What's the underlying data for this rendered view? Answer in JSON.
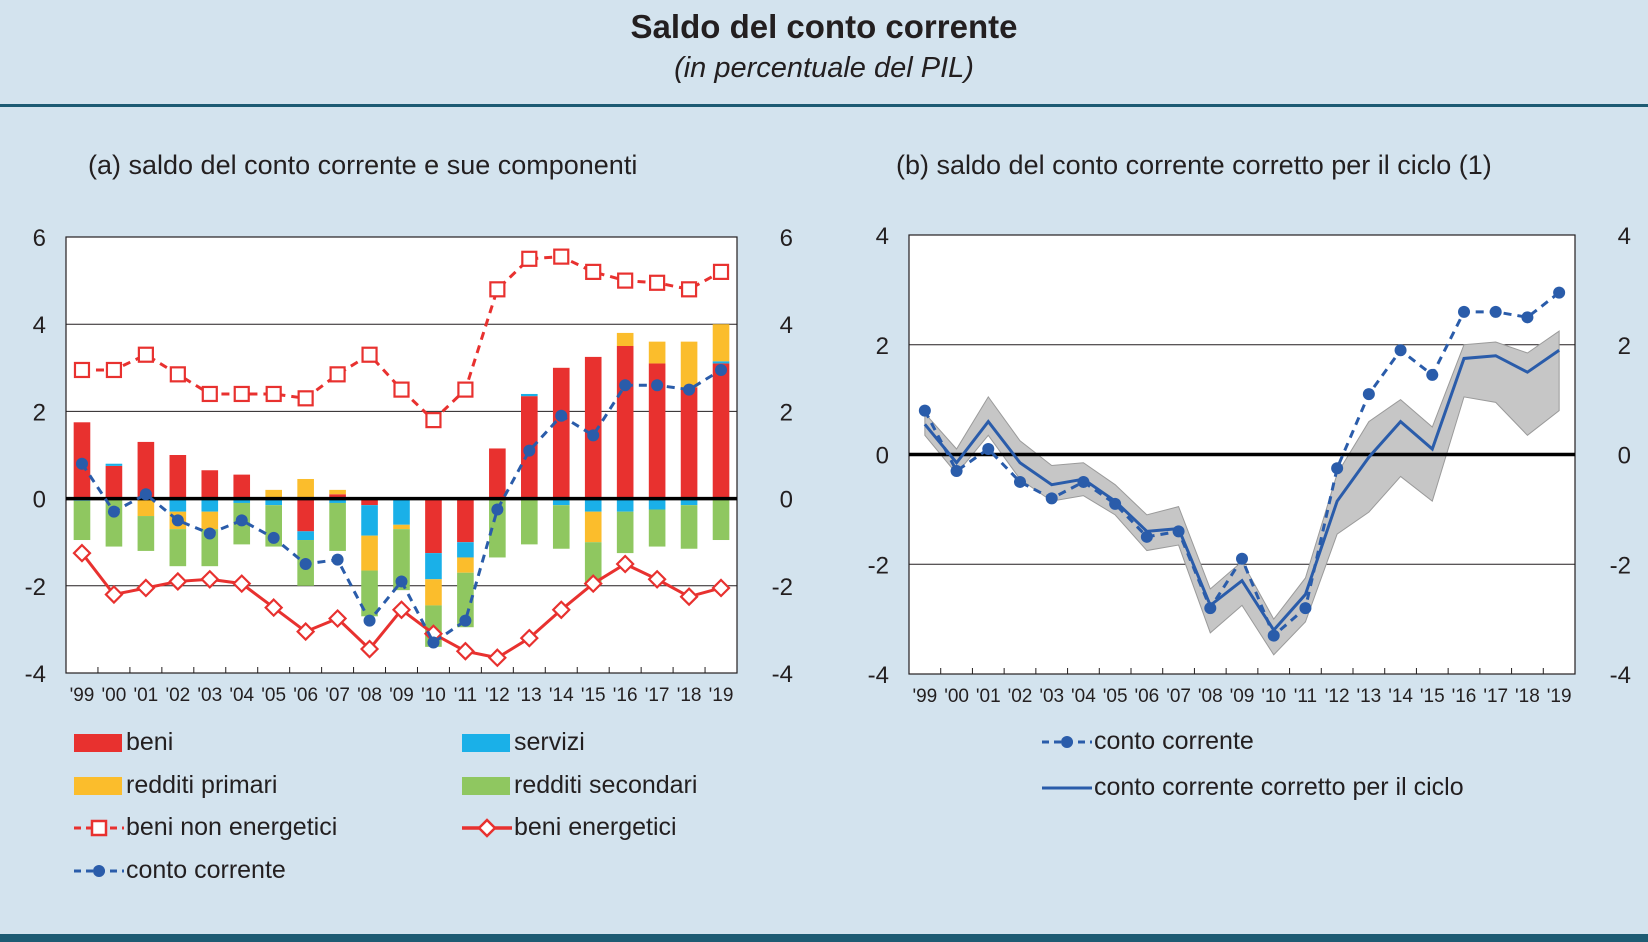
{
  "figure": {
    "title": "Saldo del conto corrente",
    "subtitle": "(in percentuale del PIL)"
  },
  "chart_data": [
    {
      "type": "bar",
      "title": "(a) saldo del conto corrente e sue componenti",
      "categories": [
        "'99",
        "'00",
        "'01",
        "'02",
        "'03",
        "'04",
        "'05",
        "'06",
        "'07",
        "'08",
        "'09",
        "'10",
        "'11",
        "'12",
        "'13",
        "'14",
        "'15",
        "'16",
        "'17",
        "'18",
        "'19"
      ],
      "ylim": [
        -4,
        6
      ],
      "yticks": [
        "6",
        "4",
        "2",
        "0",
        "-2",
        "-4"
      ],
      "grid": true,
      "stacked": true,
      "series": [
        {
          "name": "beni",
          "kind": "bar",
          "color": "#e8312f",
          "values": [
            1.75,
            0.75,
            1.3,
            1.0,
            0.65,
            0.55,
            0.0,
            -0.75,
            0.1,
            -0.15,
            0.0,
            -1.25,
            -1.0,
            1.15,
            2.35,
            3.0,
            3.25,
            3.5,
            3.1,
            2.55,
            3.1
          ]
        },
        {
          "name": "servizi",
          "kind": "bar",
          "color": "#1ab0e8",
          "values": [
            -0.05,
            0.05,
            0.0,
            -0.3,
            -0.3,
            -0.1,
            -0.15,
            -0.2,
            -0.1,
            -0.7,
            -0.6,
            -0.6,
            -0.35,
            0.0,
            0.05,
            -0.15,
            -0.3,
            -0.3,
            -0.25,
            -0.15,
            0.05
          ]
        },
        {
          "name": "redditi primari",
          "kind": "bar",
          "color": "#fbbd2c",
          "values": [
            0.0,
            0.0,
            -0.4,
            -0.4,
            -0.4,
            0.0,
            0.2,
            0.45,
            0.1,
            -0.8,
            -0.1,
            -0.6,
            -0.35,
            0.0,
            0.0,
            0.0,
            -0.7,
            0.3,
            0.5,
            1.05,
            0.85
          ]
        },
        {
          "name": "redditi secondari",
          "kind": "bar",
          "color": "#8fc760",
          "values": [
            -0.9,
            -1.1,
            -0.8,
            -0.85,
            -0.85,
            -0.95,
            -0.95,
            -1.05,
            -1.1,
            -1.05,
            -1.4,
            -0.95,
            -1.25,
            -1.35,
            -1.05,
            -1.0,
            -0.95,
            -0.95,
            -0.85,
            -1.0,
            -0.95
          ]
        },
        {
          "name": "beni non energetici",
          "kind": "line",
          "color": "#e8312f",
          "values": [
            2.95,
            2.95,
            3.3,
            2.85,
            2.4,
            2.4,
            2.4,
            2.3,
            2.85,
            3.3,
            2.5,
            1.8,
            2.5,
            4.8,
            5.5,
            5.55,
            5.2,
            5.0,
            4.95,
            4.8,
            5.2
          ]
        },
        {
          "name": "beni energetici",
          "kind": "line",
          "color": "#e8312f",
          "values": [
            -1.25,
            -2.2,
            -2.05,
            -1.9,
            -1.85,
            -1.95,
            -2.5,
            -3.05,
            -2.75,
            -3.45,
            -2.55,
            -3.1,
            -3.5,
            -3.65,
            -3.2,
            -2.55,
            -1.95,
            -1.5,
            -1.85,
            -2.25,
            -2.05
          ]
        },
        {
          "name": "conto corrente",
          "kind": "line",
          "color": "#2a5caa",
          "values": [
            0.8,
            -0.3,
            0.1,
            -0.5,
            -0.8,
            -0.5,
            -0.9,
            -1.5,
            -1.4,
            -2.8,
            -1.9,
            -3.3,
            -2.8,
            -0.25,
            1.1,
            1.9,
            1.45,
            2.6,
            2.6,
            2.5,
            2.95
          ]
        }
      ]
    },
    {
      "type": "line",
      "title": "(b) saldo del conto corrente corretto per il ciclo (1)",
      "categories": [
        "'99",
        "'00",
        "'01",
        "'02",
        "'03",
        "'04",
        "'05",
        "'06",
        "'07",
        "'08",
        "'09",
        "'10",
        "'11",
        "'12",
        "'13",
        "'14",
        "'15",
        "'16",
        "'17",
        "'18",
        "'19"
      ],
      "ylim": [
        -4,
        4
      ],
      "yticks": [
        "4",
        "2",
        "0",
        "-2",
        "-4"
      ],
      "grid": true,
      "series": [
        {
          "name": "conto corrente",
          "color": "#2a5caa",
          "style": "dashed-marker",
          "values": [
            0.8,
            -0.3,
            0.1,
            -0.5,
            -0.8,
            -0.5,
            -0.9,
            -1.5,
            -1.4,
            -2.8,
            -1.9,
            -3.3,
            -2.8,
            -0.25,
            1.1,
            1.9,
            1.45,
            2.6,
            2.6,
            2.5,
            2.95
          ]
        },
        {
          "name": "conto corrente corretto per il ciclo",
          "color": "#2a5caa",
          "style": "solid",
          "values": [
            0.55,
            -0.15,
            0.6,
            -0.15,
            -0.55,
            -0.45,
            -0.85,
            -1.4,
            -1.35,
            -2.75,
            -2.3,
            -3.2,
            -2.55,
            -0.85,
            -0.05,
            0.6,
            0.1,
            1.75,
            1.8,
            1.5,
            1.9
          ],
          "band_upper": [
            0.75,
            0.1,
            1.05,
            0.25,
            -0.2,
            -0.15,
            -0.55,
            -1.1,
            -0.95,
            -2.45,
            -1.95,
            -3.0,
            -2.25,
            -0.35,
            0.6,
            1.0,
            0.5,
            2.0,
            2.05,
            1.85,
            2.25
          ],
          "band_lower": [
            0.35,
            -0.35,
            0.35,
            -0.45,
            -0.85,
            -0.75,
            -1.1,
            -1.75,
            -1.65,
            -3.25,
            -2.75,
            -3.65,
            -3.05,
            -1.45,
            -1.05,
            -0.4,
            -0.85,
            1.05,
            0.95,
            0.35,
            0.8
          ]
        }
      ]
    }
  ]
}
